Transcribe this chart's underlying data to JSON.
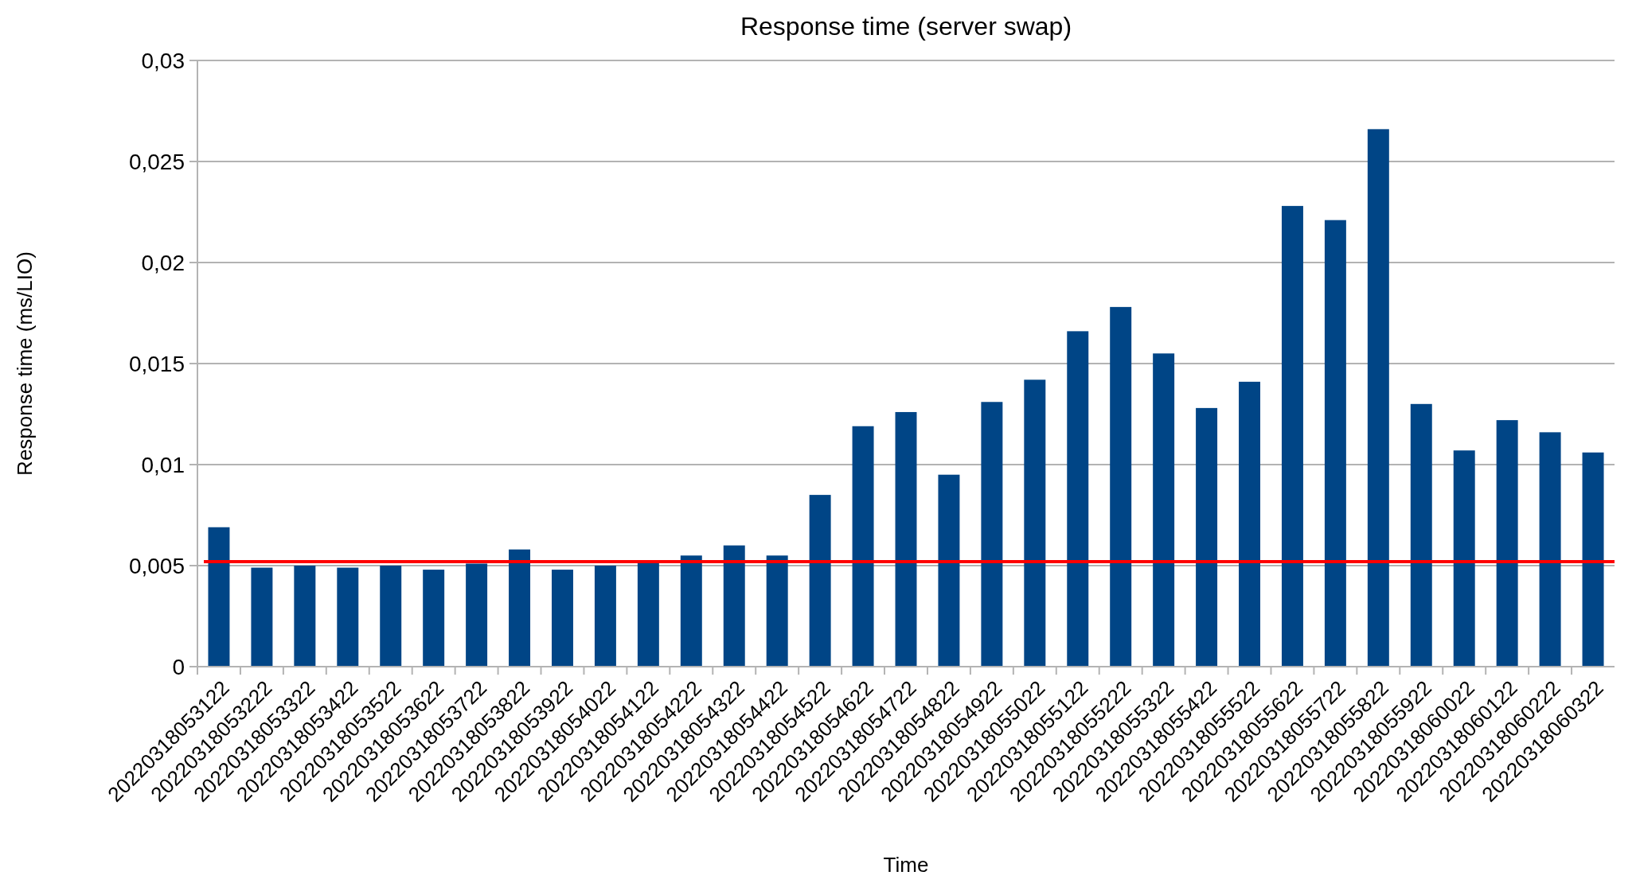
{
  "chart_data": {
    "type": "bar",
    "title": "Response time (server swap)",
    "xlabel": "Time",
    "ylabel": "Response time (ms/LIO)",
    "categories": [
      "20220318053122",
      "20220318053222",
      "20220318053322",
      "20220318053422",
      "20220318053522",
      "20220318053622",
      "20220318053722",
      "20220318053822",
      "20220318053922",
      "20220318054022",
      "20220318054122",
      "20220318054222",
      "20220318054322",
      "20220318054422",
      "20220318054522",
      "20220318054622",
      "20220318054722",
      "20220318054822",
      "20220318054922",
      "20220318055022",
      "20220318055122",
      "20220318055222",
      "20220318055322",
      "20220318055422",
      "20220318055522",
      "20220318055622",
      "20220318055722",
      "20220318055822",
      "20220318055922",
      "20220318060022",
      "20220318060122",
      "20220318060222",
      "20220318060322"
    ],
    "values": [
      0.0069,
      0.0049,
      0.005,
      0.0049,
      0.005,
      0.0048,
      0.0051,
      0.0058,
      0.0048,
      0.005,
      0.0052,
      0.0055,
      0.006,
      0.0055,
      0.0085,
      0.0119,
      0.0126,
      0.0095,
      0.0131,
      0.0142,
      0.0166,
      0.0178,
      0.0155,
      0.0128,
      0.0141,
      0.0228,
      0.0221,
      0.0266,
      0.013,
      0.0107,
      0.0122,
      0.0116,
      0.0106
    ],
    "color": "#004586",
    "ylim": [
      0,
      0.03
    ],
    "yticks": [
      0,
      {
        "value": 0.005,
        "label": "0,005"
      },
      {
        "value": 0.01,
        "label": "0,01"
      },
      {
        "value": 0.015,
        "label": "0,015"
      },
      {
        "value": 0.02,
        "label": "0,02"
      },
      {
        "value": 0.025,
        "label": "0,025"
      },
      {
        "value": 0.03,
        "label": "0,03"
      }
    ],
    "grid": "y",
    "ref_lines": [
      {
        "axis": "y",
        "value": 0.0052,
        "color": "#ff0000"
      }
    ]
  }
}
